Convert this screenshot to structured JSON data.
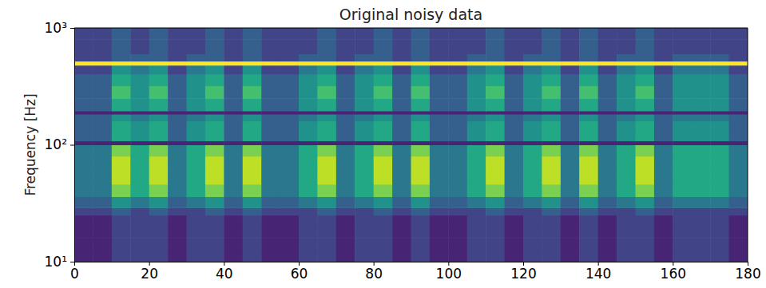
{
  "chart_data": {
    "type": "heatmap",
    "title": "Original noisy data",
    "y_label": "Frequency [Hz]",
    "log": "y",
    "grid": false,
    "color": "viridis",
    "zlim": [
      0,
      10
    ],
    "xlim": [
      0,
      180
    ],
    "ylim": [
      10,
      1000
    ],
    "xticks": [
      0,
      20,
      40,
      60,
      80,
      100,
      120,
      140,
      160,
      180
    ],
    "yticks": [
      {
        "value": 10,
        "label": "10¹"
      },
      {
        "value": 100,
        "label": "10²"
      },
      {
        "value": 1000,
        "label": "10³"
      }
    ],
    "x_bins": [
      0,
      5,
      10,
      15,
      20,
      25,
      30,
      35,
      40,
      45,
      50,
      55,
      60,
      65,
      70,
      75,
      80,
      85,
      90,
      95,
      100,
      105,
      110,
      115,
      120,
      125,
      130,
      135,
      140,
      145,
      150,
      155,
      160,
      165,
      170,
      175,
      180
    ],
    "y_bins": [
      10,
      12.5,
      16,
      20,
      25,
      29,
      36,
      46,
      60,
      80,
      100,
      108,
      130,
      160,
      183,
      195,
      250,
      320,
      400,
      480,
      520,
      600,
      800,
      1000
    ],
    "values": [
      [
        1,
        1,
        2,
        2,
        2,
        1,
        2,
        2,
        1,
        2,
        1,
        1,
        2,
        2,
        1,
        2,
        2,
        1,
        2,
        1,
        1,
        2,
        2,
        1,
        2,
        2,
        1,
        2,
        1,
        2,
        2,
        1,
        2,
        2,
        2,
        1
      ],
      [
        1,
        1,
        2,
        2,
        2,
        1,
        2,
        2,
        1,
        2,
        1,
        1,
        2,
        2,
        1,
        2,
        2,
        1,
        2,
        1,
        1,
        2,
        2,
        1,
        2,
        2,
        1,
        2,
        1,
        2,
        2,
        1,
        2,
        2,
        2,
        1
      ],
      [
        1,
        1,
        2,
        2,
        2,
        1,
        2,
        2,
        1,
        2,
        1,
        1,
        2,
        2,
        1,
        2,
        2,
        1,
        2,
        1,
        1,
        2,
        2,
        1,
        2,
        2,
        1,
        2,
        1,
        2,
        2,
        1,
        2,
        2,
        2,
        1
      ],
      [
        1,
        1,
        2,
        2,
        2,
        1,
        2,
        2,
        1,
        2,
        1,
        1,
        2,
        2,
        1,
        2,
        2,
        1,
        2,
        1,
        1,
        2,
        2,
        1,
        2,
        2,
        1,
        2,
        1,
        2,
        2,
        1,
        2,
        2,
        2,
        1
      ],
      [
        2,
        2,
        3,
        2,
        3,
        2,
        2,
        3,
        2,
        3,
        2,
        2,
        2,
        3,
        2,
        2,
        3,
        2,
        3,
        2,
        2,
        2,
        3,
        2,
        2,
        3,
        2,
        3,
        2,
        2,
        3,
        2,
        2,
        2,
        2,
        2
      ],
      [
        3,
        3,
        5,
        4,
        5,
        3,
        4,
        5,
        3,
        5,
        3,
        3,
        4,
        5,
        3,
        4,
        5,
        3,
        5,
        3,
        3,
        4,
        5,
        3,
        4,
        5,
        3,
        5,
        3,
        4,
        5,
        3,
        4,
        4,
        4,
        3
      ],
      [
        4,
        4,
        8,
        6,
        8,
        4,
        6,
        8,
        4,
        8,
        4,
        4,
        6,
        8,
        4,
        6,
        8,
        4,
        8,
        4,
        4,
        6,
        8,
        4,
        6,
        8,
        4,
        8,
        4,
        6,
        8,
        4,
        6,
        6,
        6,
        4
      ],
      [
        4,
        4,
        9,
        6,
        9,
        4,
        6,
        9,
        4,
        9,
        4,
        4,
        6,
        9,
        4,
        6,
        9,
        4,
        9,
        4,
        4,
        6,
        9,
        4,
        6,
        9,
        4,
        9,
        4,
        6,
        9,
        4,
        6,
        6,
        6,
        4
      ],
      [
        4,
        4,
        9,
        6,
        9,
        4,
        6,
        9,
        4,
        9,
        4,
        4,
        6,
        9,
        4,
        6,
        9,
        4,
        9,
        4,
        4,
        6,
        9,
        4,
        6,
        9,
        4,
        9,
        4,
        6,
        9,
        4,
        6,
        6,
        6,
        4
      ],
      [
        4,
        4,
        8,
        6,
        8,
        4,
        6,
        8,
        4,
        8,
        4,
        4,
        6,
        8,
        4,
        6,
        8,
        4,
        8,
        4,
        4,
        6,
        8,
        4,
        6,
        8,
        4,
        8,
        4,
        6,
        8,
        4,
        6,
        6,
        6,
        4
      ],
      [
        1,
        1,
        1,
        1,
        1,
        1,
        1,
        1,
        1,
        1,
        1,
        1,
        1,
        1,
        1,
        1,
        1,
        1,
        1,
        1,
        1,
        1,
        1,
        1,
        1,
        1,
        1,
        1,
        1,
        1,
        1,
        1,
        1,
        1,
        1,
        1
      ],
      [
        3,
        3,
        6,
        5,
        6,
        3,
        5,
        6,
        3,
        6,
        3,
        3,
        5,
        6,
        3,
        5,
        6,
        3,
        6,
        3,
        3,
        5,
        6,
        3,
        5,
        6,
        3,
        6,
        3,
        5,
        6,
        3,
        5,
        5,
        5,
        3
      ],
      [
        3,
        3,
        6,
        5,
        6,
        3,
        5,
        6,
        3,
        6,
        3,
        3,
        5,
        6,
        3,
        5,
        6,
        3,
        6,
        3,
        3,
        5,
        6,
        3,
        5,
        6,
        3,
        6,
        3,
        5,
        6,
        3,
        5,
        5,
        5,
        3
      ],
      [
        3,
        3,
        5,
        4,
        5,
        3,
        4,
        5,
        3,
        5,
        3,
        3,
        4,
        5,
        3,
        4,
        5,
        3,
        5,
        3,
        3,
        4,
        5,
        3,
        4,
        5,
        3,
        5,
        3,
        4,
        5,
        3,
        4,
        4,
        4,
        3
      ],
      [
        1,
        1,
        1,
        1,
        1,
        1,
        1,
        1,
        1,
        1,
        1,
        1,
        1,
        1,
        1,
        1,
        1,
        1,
        1,
        1,
        1,
        1,
        1,
        1,
        1,
        1,
        1,
        1,
        1,
        1,
        1,
        1,
        1,
        1,
        1,
        1
      ],
      [
        3,
        3,
        6,
        5,
        6,
        3,
        5,
        6,
        3,
        6,
        3,
        3,
        5,
        6,
        3,
        5,
        6,
        3,
        6,
        3,
        3,
        5,
        6,
        3,
        5,
        6,
        3,
        6,
        3,
        5,
        6,
        3,
        5,
        5,
        5,
        3
      ],
      [
        3,
        3,
        7,
        5,
        7,
        3,
        5,
        7,
        3,
        7,
        3,
        3,
        5,
        7,
        3,
        5,
        7,
        3,
        7,
        3,
        3,
        5,
        7,
        3,
        5,
        7,
        3,
        7,
        3,
        5,
        7,
        3,
        5,
        5,
        5,
        3
      ],
      [
        3,
        3,
        6,
        5,
        6,
        3,
        5,
        6,
        3,
        6,
        3,
        3,
        5,
        6,
        3,
        5,
        6,
        3,
        6,
        3,
        3,
        5,
        6,
        3,
        5,
        6,
        3,
        6,
        3,
        5,
        6,
        3,
        5,
        5,
        5,
        3
      ],
      [
        2,
        2,
        5,
        4,
        5,
        2,
        4,
        5,
        2,
        5,
        2,
        2,
        4,
        5,
        2,
        4,
        5,
        2,
        5,
        2,
        2,
        4,
        5,
        2,
        4,
        5,
        2,
        5,
        2,
        4,
        5,
        2,
        4,
        4,
        4,
        2
      ],
      [
        10,
        10,
        10,
        10,
        10,
        10,
        10,
        10,
        10,
        10,
        10,
        10,
        10,
        10,
        10,
        10,
        10,
        10,
        10,
        10,
        10,
        10,
        10,
        10,
        10,
        10,
        10,
        10,
        10,
        10,
        10,
        10,
        10,
        10,
        10,
        10
      ],
      [
        2,
        2,
        3,
        3,
        3,
        2,
        3,
        3,
        2,
        3,
        2,
        2,
        3,
        3,
        2,
        3,
        3,
        2,
        3,
        2,
        2,
        3,
        3,
        2,
        3,
        3,
        2,
        3,
        2,
        3,
        3,
        2,
        3,
        3,
        3,
        2
      ],
      [
        2,
        2,
        3,
        2,
        3,
        2,
        2,
        3,
        2,
        3,
        2,
        2,
        2,
        3,
        2,
        2,
        3,
        2,
        3,
        2,
        2,
        2,
        3,
        2,
        2,
        3,
        2,
        3,
        2,
        2,
        3,
        2,
        2,
        2,
        2,
        2
      ],
      [
        2,
        2,
        3,
        2,
        3,
        2,
        2,
        3,
        2,
        3,
        2,
        2,
        2,
        3,
        2,
        2,
        3,
        2,
        3,
        2,
        2,
        2,
        3,
        2,
        2,
        3,
        2,
        3,
        2,
        2,
        3,
        2,
        2,
        2,
        2,
        2
      ]
    ]
  }
}
